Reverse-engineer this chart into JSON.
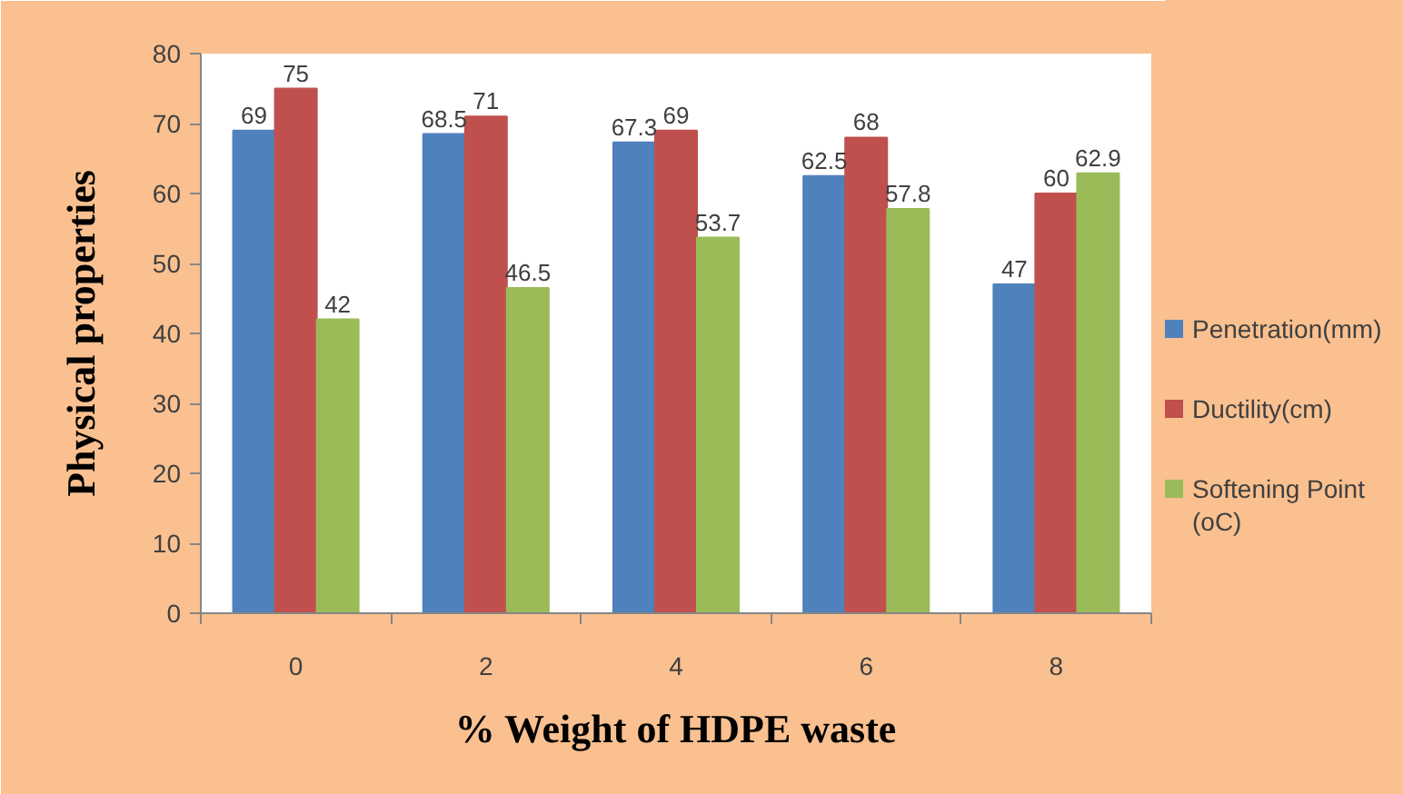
{
  "chart_data": {
    "type": "bar",
    "categories": [
      "0",
      "2",
      "4",
      "6",
      "8"
    ],
    "series": [
      {
        "name": "Penetration(mm)",
        "color": "#4f81bd",
        "values": [
          69,
          68.5,
          67.3,
          62.5,
          47
        ]
      },
      {
        "name": "Ductility(cm)",
        "color": "#c0504d",
        "values": [
          75,
          71,
          69,
          68,
          60
        ]
      },
      {
        "name": "Softening Point (oC)",
        "color": "#9bbb59",
        "values": [
          42,
          46.5,
          53.7,
          57.8,
          62.9
        ]
      }
    ],
    "xlabel": "% Weight of HDPE waste",
    "ylabel": "Physical properties",
    "ylim": [
      0,
      80
    ],
    "yticks": [
      0,
      10,
      20,
      30,
      40,
      50,
      60,
      70,
      80
    ],
    "data_labels": true,
    "legend": "right"
  }
}
